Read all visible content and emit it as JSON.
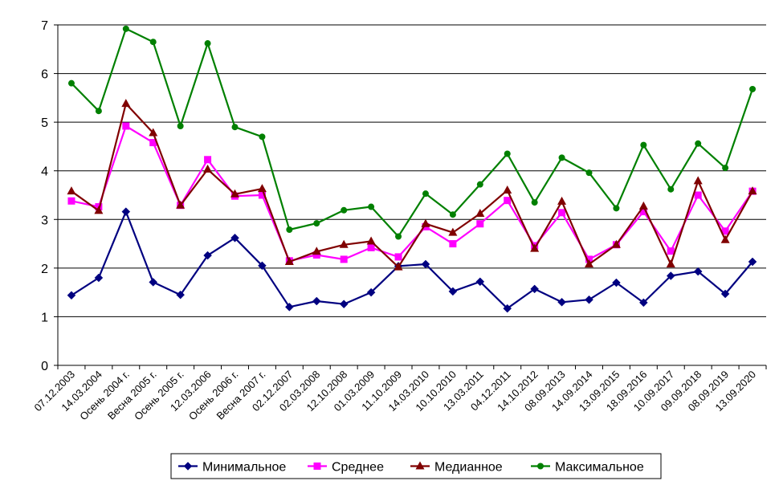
{
  "chart_data": {
    "type": "line",
    "title": "",
    "xlabel": "",
    "ylabel": "",
    "ylim": [
      0,
      7
    ],
    "yticks": [
      "0",
      "1",
      "2",
      "3",
      "4",
      "5",
      "6",
      "7"
    ],
    "grid": "horizontal",
    "legend_position": "bottom",
    "categories": [
      "07.12.2003",
      "14.03.2004",
      "Осень 2004 г.",
      "Весна 2005 г.",
      "Осень 2005 г.",
      "12.03.2006",
      "Осень 2006 г.",
      "Весна 2007 г.",
      "02.12.2007",
      "02.03.2008",
      "12.10.2008",
      "01.03.2009",
      "11.10.2009",
      "14.03.2010",
      "10.10.2010",
      "13.03.2011",
      "04.12.2011",
      "14.10.2012",
      "08.09.2013",
      "14.09.2014",
      "13.09.2015",
      "18.09.2016",
      "10.09.2017",
      "09.09.2018",
      "08.09.2019",
      "13.09.2020"
    ],
    "series": [
      {
        "name": "Минимальное",
        "color": "#000080",
        "marker": "diamond",
        "values": [
          1.44,
          1.8,
          3.16,
          1.71,
          1.45,
          2.26,
          2.62,
          2.05,
          1.2,
          1.32,
          1.26,
          1.5,
          2.04,
          2.08,
          1.52,
          1.72,
          1.17,
          1.57,
          1.3,
          1.35,
          1.7,
          1.29,
          1.84,
          1.93,
          1.47,
          2.13
        ]
      },
      {
        "name": "Среднее",
        "color": "#FF00FF",
        "marker": "square",
        "values": [
          3.38,
          3.26,
          4.92,
          4.58,
          3.29,
          4.23,
          3.48,
          3.5,
          2.15,
          2.27,
          2.18,
          2.42,
          2.23,
          2.85,
          2.5,
          2.91,
          3.39,
          2.46,
          3.14,
          2.18,
          2.48,
          3.16,
          2.35,
          3.5,
          2.76,
          3.58
        ]
      },
      {
        "name": "Медианное",
        "color": "#800000",
        "marker": "triangle",
        "values": [
          3.58,
          3.18,
          5.38,
          4.78,
          3.29,
          4.03,
          3.52,
          3.63,
          2.13,
          2.34,
          2.48,
          2.55,
          2.02,
          2.91,
          2.73,
          3.12,
          3.6,
          2.4,
          3.37,
          2.08,
          2.48,
          3.27,
          2.08,
          3.79,
          2.58,
          3.58
        ]
      },
      {
        "name": "Максимальное",
        "color": "#008000",
        "marker": "circle",
        "values": [
          5.8,
          5.23,
          6.92,
          6.65,
          4.92,
          6.62,
          4.9,
          4.7,
          2.79,
          2.92,
          3.19,
          3.26,
          2.65,
          3.53,
          3.1,
          3.72,
          4.35,
          3.35,
          4.27,
          3.96,
          3.23,
          4.53,
          3.62,
          4.56,
          4.06,
          5.68
        ]
      }
    ]
  }
}
